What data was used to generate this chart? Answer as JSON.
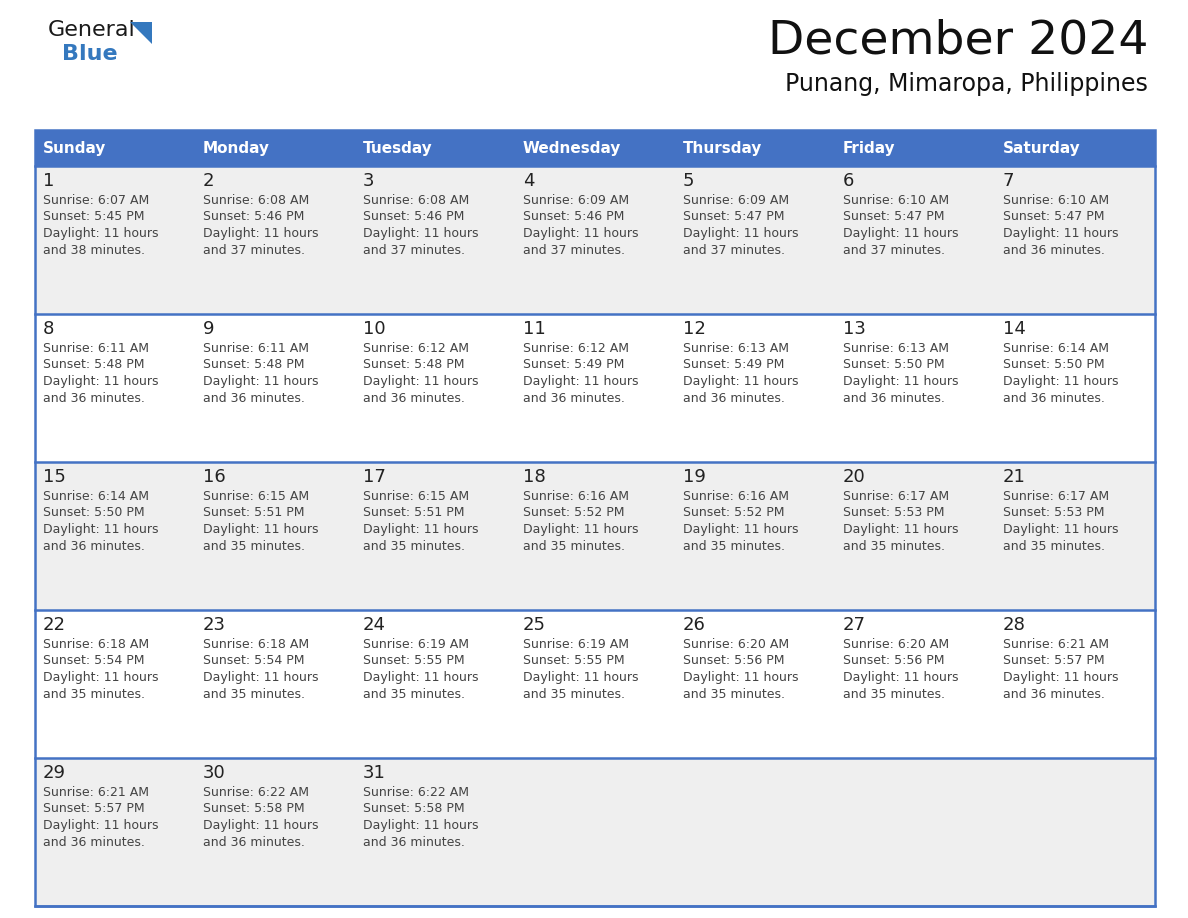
{
  "title": "December 2024",
  "subtitle": "Punang, Mimaropa, Philippines",
  "header_color": "#4472C4",
  "header_text_color": "#FFFFFF",
  "days_of_week": [
    "Sunday",
    "Monday",
    "Tuesday",
    "Wednesday",
    "Thursday",
    "Friday",
    "Saturday"
  ],
  "bg_color_odd": "#EFEFEF",
  "bg_color_even": "#FFFFFF",
  "cell_text_color": "#333333",
  "calendar_data": [
    [
      {
        "day": 1,
        "sunrise": "6:07 AM",
        "sunset": "5:45 PM",
        "daylight_suffix": "38 minutes."
      },
      {
        "day": 2,
        "sunrise": "6:08 AM",
        "sunset": "5:46 PM",
        "daylight_suffix": "37 minutes."
      },
      {
        "day": 3,
        "sunrise": "6:08 AM",
        "sunset": "5:46 PM",
        "daylight_suffix": "37 minutes."
      },
      {
        "day": 4,
        "sunrise": "6:09 AM",
        "sunset": "5:46 PM",
        "daylight_suffix": "37 minutes."
      },
      {
        "day": 5,
        "sunrise": "6:09 AM",
        "sunset": "5:47 PM",
        "daylight_suffix": "37 minutes."
      },
      {
        "day": 6,
        "sunrise": "6:10 AM",
        "sunset": "5:47 PM",
        "daylight_suffix": "37 minutes."
      },
      {
        "day": 7,
        "sunrise": "6:10 AM",
        "sunset": "5:47 PM",
        "daylight_suffix": "36 minutes."
      }
    ],
    [
      {
        "day": 8,
        "sunrise": "6:11 AM",
        "sunset": "5:48 PM",
        "daylight_suffix": "36 minutes."
      },
      {
        "day": 9,
        "sunrise": "6:11 AM",
        "sunset": "5:48 PM",
        "daylight_suffix": "36 minutes."
      },
      {
        "day": 10,
        "sunrise": "6:12 AM",
        "sunset": "5:48 PM",
        "daylight_suffix": "36 minutes."
      },
      {
        "day": 11,
        "sunrise": "6:12 AM",
        "sunset": "5:49 PM",
        "daylight_suffix": "36 minutes."
      },
      {
        "day": 12,
        "sunrise": "6:13 AM",
        "sunset": "5:49 PM",
        "daylight_suffix": "36 minutes."
      },
      {
        "day": 13,
        "sunrise": "6:13 AM",
        "sunset": "5:50 PM",
        "daylight_suffix": "36 minutes."
      },
      {
        "day": 14,
        "sunrise": "6:14 AM",
        "sunset": "5:50 PM",
        "daylight_suffix": "36 minutes."
      }
    ],
    [
      {
        "day": 15,
        "sunrise": "6:14 AM",
        "sunset": "5:50 PM",
        "daylight_suffix": "36 minutes."
      },
      {
        "day": 16,
        "sunrise": "6:15 AM",
        "sunset": "5:51 PM",
        "daylight_suffix": "35 minutes."
      },
      {
        "day": 17,
        "sunrise": "6:15 AM",
        "sunset": "5:51 PM",
        "daylight_suffix": "35 minutes."
      },
      {
        "day": 18,
        "sunrise": "6:16 AM",
        "sunset": "5:52 PM",
        "daylight_suffix": "35 minutes."
      },
      {
        "day": 19,
        "sunrise": "6:16 AM",
        "sunset": "5:52 PM",
        "daylight_suffix": "35 minutes."
      },
      {
        "day": 20,
        "sunrise": "6:17 AM",
        "sunset": "5:53 PM",
        "daylight_suffix": "35 minutes."
      },
      {
        "day": 21,
        "sunrise": "6:17 AM",
        "sunset": "5:53 PM",
        "daylight_suffix": "35 minutes."
      }
    ],
    [
      {
        "day": 22,
        "sunrise": "6:18 AM",
        "sunset": "5:54 PM",
        "daylight_suffix": "35 minutes."
      },
      {
        "day": 23,
        "sunrise": "6:18 AM",
        "sunset": "5:54 PM",
        "daylight_suffix": "35 minutes."
      },
      {
        "day": 24,
        "sunrise": "6:19 AM",
        "sunset": "5:55 PM",
        "daylight_suffix": "35 minutes."
      },
      {
        "day": 25,
        "sunrise": "6:19 AM",
        "sunset": "5:55 PM",
        "daylight_suffix": "35 minutes."
      },
      {
        "day": 26,
        "sunrise": "6:20 AM",
        "sunset": "5:56 PM",
        "daylight_suffix": "35 minutes."
      },
      {
        "day": 27,
        "sunrise": "6:20 AM",
        "sunset": "5:56 PM",
        "daylight_suffix": "35 minutes."
      },
      {
        "day": 28,
        "sunrise": "6:21 AM",
        "sunset": "5:57 PM",
        "daylight_suffix": "36 minutes."
      }
    ],
    [
      {
        "day": 29,
        "sunrise": "6:21 AM",
        "sunset": "5:57 PM",
        "daylight_suffix": "36 minutes."
      },
      {
        "day": 30,
        "sunrise": "6:22 AM",
        "sunset": "5:58 PM",
        "daylight_suffix": "36 minutes."
      },
      {
        "day": 31,
        "sunrise": "6:22 AM",
        "sunset": "5:58 PM",
        "daylight_suffix": "36 minutes."
      },
      null,
      null,
      null,
      null
    ]
  ],
  "line_color": "#4472C4",
  "border_color": "#4472C4",
  "logo_general_color": "#1a1a1a",
  "logo_blue_color": "#3478BE",
  "logo_triangle_color": "#3478BE"
}
